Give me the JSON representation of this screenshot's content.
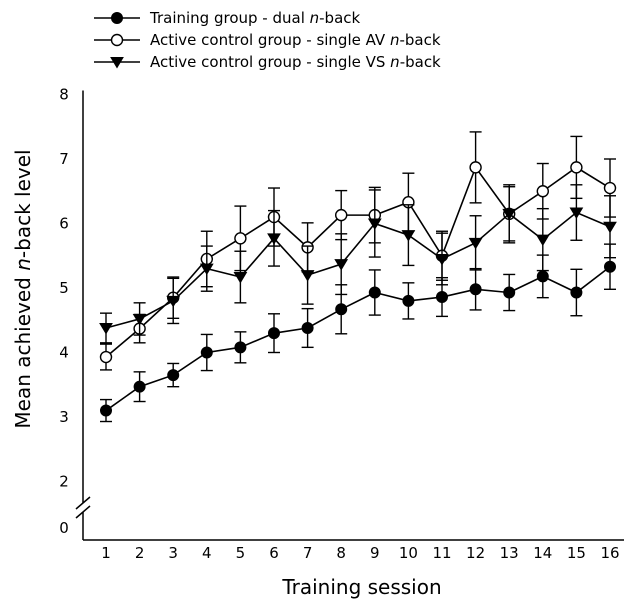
{
  "chart_data": {
    "type": "line",
    "title": "",
    "xlabel": "Training session",
    "ylabel_parts": [
      "Mean achieved ",
      "n",
      "-back level"
    ],
    "x": [
      1,
      2,
      3,
      4,
      5,
      6,
      7,
      8,
      9,
      10,
      11,
      12,
      13,
      14,
      15,
      16
    ],
    "x_tick_labels": [
      "1",
      "2",
      "3",
      "4",
      "5",
      "6",
      "7",
      "8",
      "9",
      "10",
      "11",
      "12",
      "13",
      "14",
      "15",
      "16"
    ],
    "y_tick_labels": [
      "0",
      "2",
      "3",
      "4",
      "5",
      "6",
      "7",
      "8"
    ],
    "ylim": [
      2,
      8
    ],
    "y_axis_break": true,
    "grid": false,
    "legend_position": "top-left",
    "series": [
      {
        "name": "Training group - dual n-back",
        "legend_parts": [
          "Training group - dual ",
          "n",
          "-back"
        ],
        "marker": "filled-circle",
        "values": [
          3.1,
          3.47,
          3.65,
          4.0,
          4.08,
          4.3,
          4.38,
          4.67,
          4.93,
          4.8,
          4.86,
          4.98,
          4.93,
          5.18,
          4.93,
          5.33
        ],
        "errors": [
          0.17,
          0.23,
          0.18,
          0.28,
          0.24,
          0.3,
          0.3,
          0.38,
          0.35,
          0.28,
          0.3,
          0.32,
          0.28,
          0.33,
          0.36,
          0.35
        ]
      },
      {
        "name": "Active control group - single AV n-back",
        "legend_parts": [
          "Active control group - single AV ",
          "n",
          "-back"
        ],
        "marker": "open-circle",
        "values": [
          3.93,
          4.37,
          4.85,
          5.45,
          5.77,
          6.1,
          5.63,
          6.13,
          6.13,
          6.33,
          5.5,
          6.87,
          6.15,
          6.5,
          6.87,
          6.55
        ],
        "errors": [
          0.2,
          0.22,
          0.32,
          0.43,
          0.5,
          0.45,
          0.38,
          0.38,
          0.43,
          0.45,
          0.38,
          0.55,
          0.45,
          0.43,
          0.48,
          0.45
        ]
      },
      {
        "name": "Active control group - single VS n-back",
        "legend_parts": [
          "Active control group - single VS ",
          "n",
          "-back"
        ],
        "marker": "filled-triangle-down",
        "values": [
          4.38,
          4.52,
          4.8,
          5.3,
          5.17,
          5.77,
          5.2,
          5.37,
          6.0,
          5.82,
          5.45,
          5.7,
          6.15,
          5.75,
          6.17,
          5.95
        ],
        "errors": [
          0.23,
          0.25,
          0.35,
          0.35,
          0.4,
          0.43,
          0.45,
          0.47,
          0.52,
          0.47,
          0.4,
          0.42,
          0.42,
          0.48,
          0.43,
          0.48
        ]
      }
    ]
  }
}
